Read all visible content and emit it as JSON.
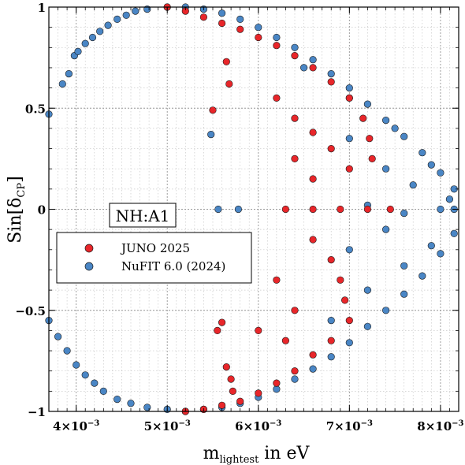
{
  "chart_data": {
    "type": "scatter",
    "title": "",
    "annotation": "NH:A1",
    "xlabel": {
      "main": "m",
      "sub": "lightest",
      "suffix": " in eV"
    },
    "ylabel": {
      "main": "Sin[δ",
      "sub": "CP",
      "suffix": "]"
    },
    "xlim": [
      0.0037,
      0.0082
    ],
    "ylim": [
      -1,
      1
    ],
    "x_ticks": [
      {
        "value": 0.004,
        "mantissa": "4",
        "exp": "−3"
      },
      {
        "value": 0.005,
        "mantissa": "5",
        "exp": "−3"
      },
      {
        "value": 0.006,
        "mantissa": "6",
        "exp": "−3"
      },
      {
        "value": 0.007,
        "mantissa": "7",
        "exp": "−3"
      },
      {
        "value": 0.008,
        "mantissa": "8",
        "exp": "−3"
      }
    ],
    "y_ticks": [
      {
        "value": 1,
        "label": "1"
      },
      {
        "value": 0.5,
        "label": "0.5"
      },
      {
        "value": 0,
        "label": "0"
      },
      {
        "value": -0.5,
        "label": "−0.5"
      },
      {
        "value": -1,
        "label": "−1"
      }
    ],
    "grid": true,
    "legend_position": "center-left",
    "series": [
      {
        "name": "NuFIT 6.0 (2024)",
        "color": "#4a86c5",
        "points": [
          [
            0.0037,
            0.47
          ],
          [
            0.00385,
            0.62
          ],
          [
            0.00392,
            0.67
          ],
          [
            0.00398,
            0.76
          ],
          [
            0.00402,
            0.78
          ],
          [
            0.0041,
            0.82
          ],
          [
            0.00418,
            0.85
          ],
          [
            0.00426,
            0.88
          ],
          [
            0.00435,
            0.91
          ],
          [
            0.00445,
            0.94
          ],
          [
            0.00455,
            0.96
          ],
          [
            0.00465,
            0.98
          ],
          [
            0.00478,
            0.99
          ],
          [
            0.005,
            1.0
          ],
          [
            0.0052,
            1.0
          ],
          [
            0.0054,
            0.99
          ],
          [
            0.0056,
            0.97
          ],
          [
            0.0058,
            0.94
          ],
          [
            0.006,
            0.9
          ],
          [
            0.0062,
            0.85
          ],
          [
            0.0064,
            0.8
          ],
          [
            0.0066,
            0.74
          ],
          [
            0.0068,
            0.67
          ],
          [
            0.007,
            0.6
          ],
          [
            0.0072,
            0.52
          ],
          [
            0.0074,
            0.44
          ],
          [
            0.0076,
            0.36
          ],
          [
            0.0078,
            0.28
          ],
          [
            0.008,
            0.18
          ],
          [
            0.00815,
            0.1
          ],
          [
            0.0065,
            0.7
          ],
          [
            0.007,
            0.55
          ],
          [
            0.0075,
            0.4
          ],
          [
            0.0079,
            0.22
          ],
          [
            0.0081,
            0.05
          ],
          [
            0.007,
            0.35
          ],
          [
            0.0074,
            0.2
          ],
          [
            0.0077,
            0.12
          ],
          [
            0.0072,
            0.02
          ],
          [
            0.0076,
            -0.02
          ],
          [
            0.0037,
            -0.55
          ],
          [
            0.0038,
            -0.63
          ],
          [
            0.0039,
            -0.7
          ],
          [
            0.004,
            -0.77
          ],
          [
            0.0041,
            -0.82
          ],
          [
            0.0042,
            -0.86
          ],
          [
            0.0043,
            -0.9
          ],
          [
            0.00445,
            -0.94
          ],
          [
            0.0046,
            -0.96
          ],
          [
            0.00478,
            -0.98
          ],
          [
            0.005,
            -0.99
          ],
          [
            0.0052,
            -1.0
          ],
          [
            0.0054,
            -0.99
          ],
          [
            0.0056,
            -0.98
          ],
          [
            0.0058,
            -0.96
          ],
          [
            0.006,
            -0.93
          ],
          [
            0.0062,
            -0.89
          ],
          [
            0.0064,
            -0.84
          ],
          [
            0.0066,
            -0.79
          ],
          [
            0.0068,
            -0.73
          ],
          [
            0.007,
            -0.66
          ],
          [
            0.0072,
            -0.58
          ],
          [
            0.0074,
            -0.5
          ],
          [
            0.0076,
            -0.42
          ],
          [
            0.0078,
            -0.33
          ],
          [
            0.008,
            -0.22
          ],
          [
            0.00815,
            -0.12
          ],
          [
            0.0068,
            -0.55
          ],
          [
            0.0072,
            -0.4
          ],
          [
            0.0076,
            -0.28
          ],
          [
            0.0079,
            -0.18
          ],
          [
            0.007,
            -0.2
          ],
          [
            0.0074,
            -0.1
          ],
          [
            0.00556,
            0.0
          ],
          [
            0.00556,
            -0.14
          ],
          [
            0.00548,
            0.37
          ],
          [
            0.00578,
            0.0
          ],
          [
            0.008,
            0.0
          ],
          [
            0.00815,
            0.0
          ]
        ]
      },
      {
        "name": "JUNO 2025",
        "color": "#e8262a",
        "points": [
          [
            0.005,
            1.0
          ],
          [
            0.0052,
            0.98
          ],
          [
            0.0054,
            0.95
          ],
          [
            0.0056,
            0.92
          ],
          [
            0.0058,
            0.89
          ],
          [
            0.006,
            0.85
          ],
          [
            0.0062,
            0.81
          ],
          [
            0.0064,
            0.76
          ],
          [
            0.0066,
            0.7
          ],
          [
            0.0068,
            0.63
          ],
          [
            0.007,
            0.55
          ],
          [
            0.00715,
            0.45
          ],
          [
            0.00722,
            0.35
          ],
          [
            0.00725,
            0.25
          ],
          [
            0.0062,
            0.55
          ],
          [
            0.0064,
            0.45
          ],
          [
            0.0066,
            0.38
          ],
          [
            0.0068,
            0.3
          ],
          [
            0.007,
            0.2
          ],
          [
            0.0064,
            0.25
          ],
          [
            0.0066,
            0.15
          ],
          [
            0.00565,
            0.73
          ],
          [
            0.00568,
            0.62
          ],
          [
            0.0055,
            0.49
          ],
          [
            0.0063,
            0.0
          ],
          [
            0.0066,
            0.0
          ],
          [
            0.0069,
            0.0
          ],
          [
            0.0072,
            0.0
          ],
          [
            0.00745,
            0.0
          ],
          [
            0.0066,
            -0.15
          ],
          [
            0.0068,
            -0.25
          ],
          [
            0.0069,
            -0.35
          ],
          [
            0.00695,
            -0.45
          ],
          [
            0.007,
            -0.55
          ],
          [
            0.0068,
            -0.65
          ],
          [
            0.0066,
            -0.72
          ],
          [
            0.0064,
            -0.8
          ],
          [
            0.0062,
            -0.86
          ],
          [
            0.006,
            -0.91
          ],
          [
            0.0058,
            -0.95
          ],
          [
            0.0056,
            -0.97
          ],
          [
            0.0054,
            -0.99
          ],
          [
            0.0052,
            -1.0
          ],
          [
            0.0062,
            -0.35
          ],
          [
            0.0064,
            -0.5
          ],
          [
            0.006,
            -0.6
          ],
          [
            0.0063,
            -0.65
          ],
          [
            0.00555,
            -0.6
          ],
          [
            0.0056,
            -0.56
          ],
          [
            0.00565,
            -0.78
          ],
          [
            0.0057,
            -0.84
          ],
          [
            0.00572,
            -0.9
          ]
        ]
      }
    ]
  }
}
